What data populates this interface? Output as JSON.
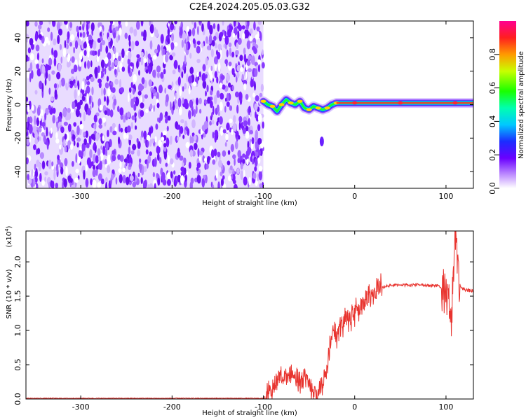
{
  "title": "C2E4.2024.205.05.03.G32",
  "chart_data": [
    {
      "type": "heatmap",
      "xlabel": "Height of straight line (km)",
      "ylabel": "Frequency (Hz)",
      "xlim": [
        -360,
        130
      ],
      "ylim": [
        -50,
        50
      ],
      "x_ticks": [
        -300,
        -200,
        -100,
        0,
        100
      ],
      "y_ticks": [
        -40,
        -20,
        0,
        20,
        40
      ],
      "noise_region_x": [
        -360,
        -100
      ],
      "signal_track": [
        {
          "x": -100,
          "y": 2
        },
        {
          "x": -95,
          "y": 0
        },
        {
          "x": -90,
          "y": -1
        },
        {
          "x": -85,
          "y": -4
        },
        {
          "x": -80,
          "y": 0
        },
        {
          "x": -75,
          "y": 3
        },
        {
          "x": -70,
          "y": 1
        },
        {
          "x": -65,
          "y": 0
        },
        {
          "x": -60,
          "y": 2
        },
        {
          "x": -55,
          "y": -2
        },
        {
          "x": -50,
          "y": -3
        },
        {
          "x": -45,
          "y": -1
        },
        {
          "x": -40,
          "y": -2
        },
        {
          "x": -35,
          "y": -3
        },
        {
          "x": -30,
          "y": -2
        },
        {
          "x": -25,
          "y": 0
        },
        {
          "x": -20,
          "y": 1
        },
        {
          "x": -10,
          "y": 1
        },
        {
          "x": 0,
          "y": 1
        },
        {
          "x": 20,
          "y": 1
        },
        {
          "x": 50,
          "y": 1
        },
        {
          "x": 80,
          "y": 1
        },
        {
          "x": 110,
          "y": 1
        },
        {
          "x": 130,
          "y": 1
        }
      ],
      "isolated_blob": {
        "x": -36,
        "y": -22
      },
      "colorbar": {
        "label": "Normalized spectral amplitude",
        "ticks": [
          0.0,
          0.2,
          0.4,
          0.6,
          0.8
        ],
        "range": [
          0,
          1
        ]
      }
    },
    {
      "type": "line",
      "xlabel": "Height of straight line (km)",
      "ylabel": "SNR (10 * v/v)",
      "multiplier_label": "(x10",
      "multiplier_exp": "4",
      "xlim": [
        -360,
        130
      ],
      "ylim": [
        0,
        2.45
      ],
      "x_ticks": [
        -300,
        -200,
        -100,
        0,
        100
      ],
      "y_ticks": [
        0.0,
        0.5,
        1.0,
        1.5,
        2.0
      ],
      "color": "#e8342f",
      "series": [
        {
          "x": [
            -360,
            -300,
            -200,
            -100,
            -90,
            -85,
            -80,
            -75,
            -70,
            -65,
            -60,
            -55,
            -50,
            -45,
            -40,
            -35,
            -30,
            -25,
            -22,
            -20,
            -15,
            -10,
            -5,
            0,
            5,
            10,
            15,
            20,
            25,
            30,
            40,
            50,
            60,
            70,
            80,
            90,
            95,
            100,
            103,
            106,
            110,
            115,
            120,
            130
          ],
          "y": [
            0.01,
            0.01,
            0.01,
            0.01,
            0.15,
            0.3,
            0.35,
            0.3,
            0.4,
            0.3,
            0.25,
            0.35,
            0.25,
            0.1,
            0.05,
            0.25,
            0.5,
            0.95,
            1.0,
            0.9,
            1.05,
            1.15,
            1.1,
            1.25,
            1.3,
            1.35,
            1.45,
            1.55,
            1.6,
            1.63,
            1.65,
            1.67,
            1.66,
            1.67,
            1.65,
            1.66,
            1.62,
            1.55,
            1.35,
            1.1,
            2.45,
            1.65,
            1.6,
            1.58
          ]
        }
      ]
    }
  ]
}
